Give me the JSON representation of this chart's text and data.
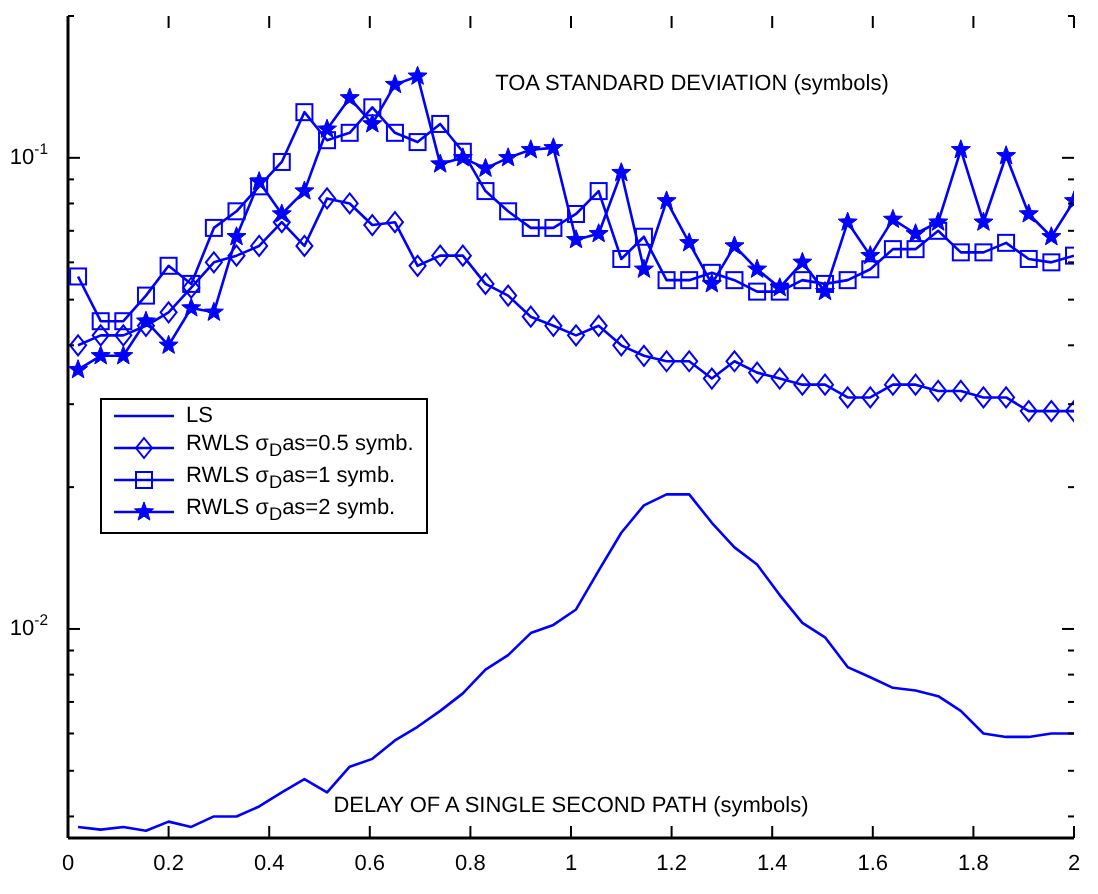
{
  "chart_data": {
    "type": "line",
    "title": "TOA STANDARD DEVIATION (symbols)",
    "xlabel": "DELAY OF A SINGLE SECOND PATH (symbols)",
    "x": [
      0.02,
      0.065,
      0.11,
      0.155,
      0.2,
      0.245,
      0.29,
      0.335,
      0.38,
      0.425,
      0.47,
      0.515,
      0.56,
      0.605,
      0.65,
      0.695,
      0.74,
      0.785,
      0.83,
      0.875,
      0.92,
      0.965,
      1.01,
      1.055,
      1.1,
      1.145,
      1.19,
      1.235,
      1.28,
      1.325,
      1.37,
      1.415,
      1.46,
      1.505,
      1.55,
      1.595,
      1.64,
      1.685,
      1.73,
      1.775,
      1.82,
      1.865,
      1.91,
      1.955,
      2.0
    ],
    "series": [
      {
        "name": "LS",
        "color": "#0000ff",
        "marker": "none",
        "values": [
          0.0038,
          0.00375,
          0.0038,
          0.00373,
          0.0039,
          0.0038,
          0.004,
          0.004,
          0.0042,
          0.0045,
          0.0048,
          0.0045,
          0.0051,
          0.0053,
          0.0058,
          0.0062,
          0.0067,
          0.0073,
          0.0082,
          0.0088,
          0.0098,
          0.0102,
          0.011,
          0.0133,
          0.016,
          0.0183,
          0.0193,
          0.0193,
          0.0168,
          0.0149,
          0.0137,
          0.0118,
          0.0103,
          0.0096,
          0.0083,
          0.0079,
          0.0075,
          0.0074,
          0.0072,
          0.0067,
          0.006,
          0.0059,
          0.0059,
          0.006,
          0.006
        ]
      },
      {
        "name": "RWLS σ$_{D}$as=0.5 symb.",
        "color": "#0000ff",
        "marker": "diamond",
        "values": [
          0.04,
          0.042,
          0.042,
          0.044,
          0.047,
          0.053,
          0.06,
          0.062,
          0.065,
          0.073,
          0.065,
          0.082,
          0.08,
          0.072,
          0.073,
          0.059,
          0.062,
          0.062,
          0.054,
          0.051,
          0.046,
          0.044,
          0.042,
          0.044,
          0.04,
          0.038,
          0.037,
          0.037,
          0.034,
          0.037,
          0.035,
          0.034,
          0.033,
          0.033,
          0.031,
          0.031,
          0.033,
          0.033,
          0.032,
          0.032,
          0.031,
          0.031,
          0.029,
          0.029,
          0.029
        ]
      },
      {
        "name": "RWLS σ$_{D}$as=1 symb.",
        "color": "#0000ff",
        "marker": "square",
        "values": [
          0.056,
          0.045,
          0.045,
          0.051,
          0.059,
          0.054,
          0.071,
          0.077,
          0.087,
          0.098,
          0.125,
          0.109,
          0.113,
          0.128,
          0.113,
          0.108,
          0.118,
          0.103,
          0.085,
          0.077,
          0.071,
          0.071,
          0.076,
          0.085,
          0.061,
          0.068,
          0.055,
          0.055,
          0.057,
          0.055,
          0.052,
          0.052,
          0.055,
          0.054,
          0.055,
          0.058,
          0.064,
          0.064,
          0.07,
          0.063,
          0.063,
          0.066,
          0.061,
          0.06,
          0.062
        ]
      },
      {
        "name": "RWLS σ$_{D}$as=2 symb.",
        "color": "#0000ff",
        "marker": "star",
        "values": [
          0.0355,
          0.038,
          0.038,
          0.045,
          0.04,
          0.048,
          0.047,
          0.068,
          0.089,
          0.076,
          0.085,
          0.115,
          0.134,
          0.118,
          0.143,
          0.149,
          0.097,
          0.1,
          0.095,
          0.1,
          0.104,
          0.105,
          0.067,
          0.069,
          0.093,
          0.058,
          0.081,
          0.066,
          0.054,
          0.065,
          0.058,
          0.053,
          0.06,
          0.052,
          0.073,
          0.062,
          0.074,
          0.069,
          0.073,
          0.104,
          0.073,
          0.101,
          0.076,
          0.068,
          0.081
        ]
      }
    ],
    "log": "y",
    "xlim": [
      0,
      2
    ],
    "xticks": [
      0,
      0.2,
      0.4,
      0.6,
      0.8,
      1,
      1.2,
      1.4,
      1.6,
      1.8,
      2
    ],
    "ylim": [
      0.0036,
      0.2
    ],
    "yticks": [
      {
        "value": 0.004,
        "label": null
      },
      {
        "value": 0.005,
        "label": null
      },
      {
        "value": 0.006,
        "label": null
      },
      {
        "value": 0.007,
        "label": null
      },
      {
        "value": 0.008,
        "label": null
      },
      {
        "value": 0.009,
        "label": null
      },
      {
        "value": 0.01,
        "label": "10$^{-2}$"
      },
      {
        "value": 0.02,
        "label": null
      },
      {
        "value": 0.03,
        "label": null
      },
      {
        "value": 0.04,
        "label": null
      },
      {
        "value": 0.05,
        "label": null
      },
      {
        "value": 0.06,
        "label": null
      },
      {
        "value": 0.07,
        "label": null
      },
      {
        "value": 0.08,
        "label": null
      },
      {
        "value": 0.09,
        "label": null
      },
      {
        "value": 0.1,
        "label": "10$^{-1}$"
      },
      {
        "value": 0.2,
        "label": null
      }
    ],
    "grid": false,
    "legend": "left"
  }
}
